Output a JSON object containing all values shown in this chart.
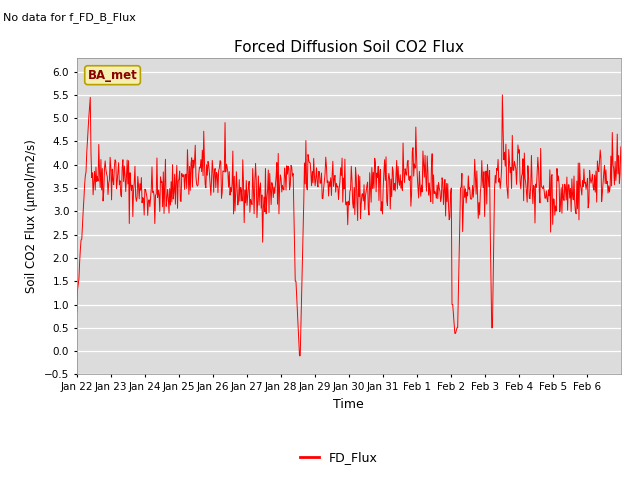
{
  "title": "Forced Diffusion Soil CO2 Flux",
  "ylabel": "Soil CO2 Flux (μmol/m2/s)",
  "xlabel": "Time",
  "ylim": [
    -0.5,
    6.3
  ],
  "legend_label": "FD_Flux",
  "top_left_text": "No data for f_FD_B_Flux",
  "legend_text_inside": "BA_met",
  "line_color": "red",
  "background_color": "#dcdcdc",
  "tick_labels": [
    "Jan 22",
    "Jan 23",
    "Jan 24",
    "Jan 25",
    "Jan 26",
    "Jan 27",
    "Jan 28",
    "Jan 29",
    "Jan 30",
    "Jan 31",
    "Feb 1",
    "Feb 2",
    "Feb 3",
    "Feb 4",
    "Feb 5",
    "Feb 6"
  ],
  "seed": 42
}
